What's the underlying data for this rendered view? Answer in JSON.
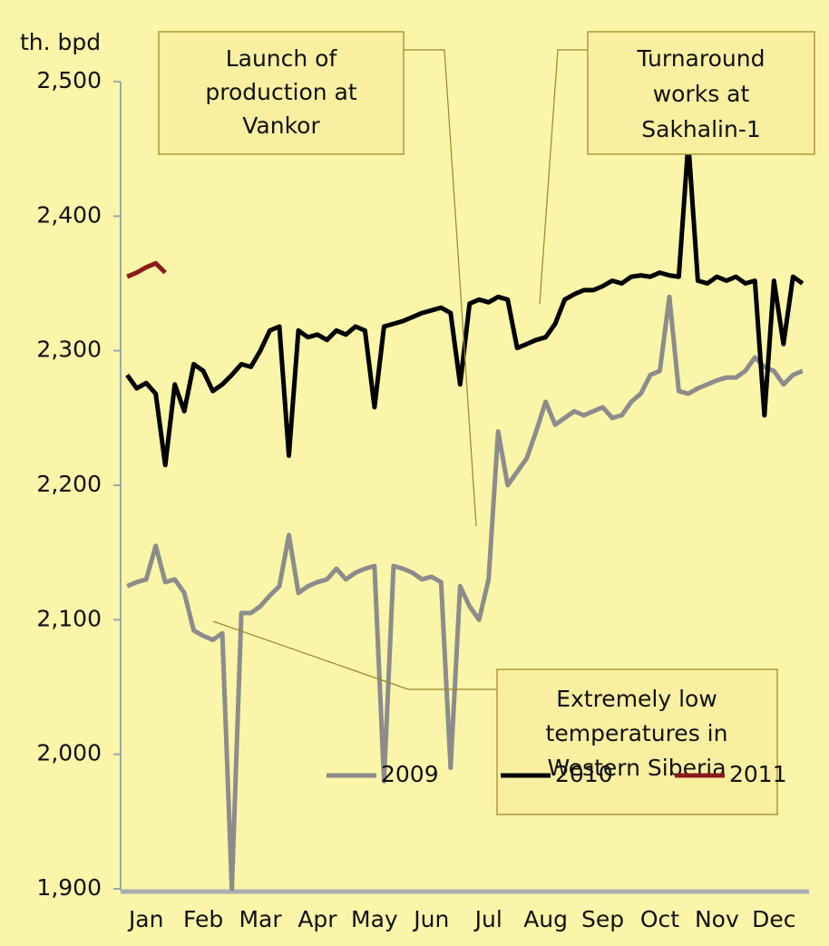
{
  "chart_data": {
    "type": "line",
    "y_axis_label": "th. bpd",
    "categories": [
      null,
      null,
      "Jan",
      null,
      null,
      null,
      null,
      null,
      "Feb",
      null,
      null,
      null,
      null,
      null,
      "Mar",
      null,
      null,
      null,
      null,
      null,
      "Apr",
      null,
      null,
      null,
      null,
      null,
      "May",
      null,
      null,
      null,
      null,
      null,
      "Jun",
      null,
      null,
      null,
      null,
      null,
      "Jul",
      null,
      null,
      null,
      null,
      null,
      "Aug",
      null,
      null,
      null,
      null,
      null,
      "Sep",
      null,
      null,
      null,
      null,
      null,
      "Oct",
      null,
      null,
      null,
      null,
      null,
      "Nov",
      null,
      null,
      null,
      null,
      null,
      "Dec",
      null,
      null,
      null
    ],
    "series": [
      {
        "name": "2009",
        "color": "#8c8c8c",
        "values": [
          2125,
          2128,
          2130,
          2155,
          2128,
          2130,
          2120,
          2092,
          2088,
          2085,
          2090,
          1900,
          2105,
          2105,
          2110,
          2118,
          2125,
          2163,
          2120,
          2125,
          2128,
          2130,
          2138,
          2130,
          2135,
          2138,
          2140,
          1980,
          2140,
          2138,
          2135,
          2130,
          2132,
          2128,
          1990,
          2125,
          2110,
          2100,
          2130,
          2240,
          2200,
          2210,
          2220,
          2240,
          2262,
          2245,
          2250,
          2255,
          2252,
          2255,
          2258,
          2250,
          2252,
          2262,
          2268,
          2282,
          2285,
          2340,
          2270,
          2268,
          2272,
          2275,
          2278,
          2280,
          2280,
          2285,
          2295,
          2288,
          2285,
          2275,
          2282,
          2285
        ]
      },
      {
        "name": "2010",
        "color": "#000000",
        "values": [
          2282,
          2272,
          2276,
          2268,
          2215,
          2275,
          2255,
          2290,
          2285,
          2270,
          2275,
          2282,
          2290,
          2288,
          2300,
          2315,
          2318,
          2222,
          2315,
          2310,
          2312,
          2308,
          2315,
          2312,
          2318,
          2315,
          2258,
          2318,
          2320,
          2322,
          2325,
          2328,
          2330,
          2332,
          2328,
          2275,
          2335,
          2338,
          2336,
          2340,
          2338,
          2302,
          2305,
          2308,
          2310,
          2320,
          2338,
          2342,
          2345,
          2345,
          2348,
          2352,
          2350,
          2355,
          2356,
          2355,
          2358,
          2356,
          2355,
          2455,
          2352,
          2350,
          2355,
          2352,
          2355,
          2350,
          2352,
          2252,
          2352,
          2305,
          2355,
          2350
        ]
      },
      {
        "name": "2011",
        "color": "#8b1a1a",
        "values": [
          2355,
          2358,
          2362,
          2365,
          2358,
          null,
          null,
          null,
          null,
          null,
          null,
          null,
          null,
          null,
          null,
          null,
          null,
          null,
          null,
          null,
          null,
          null,
          null,
          null,
          null,
          null,
          null,
          null,
          null,
          null,
          null,
          null,
          null,
          null,
          null,
          null,
          null,
          null,
          null,
          null,
          null,
          null,
          null,
          null,
          null,
          null,
          null,
          null,
          null,
          null,
          null,
          null,
          null,
          null,
          null,
          null,
          null,
          null,
          null,
          null,
          null,
          null,
          null,
          null,
          null,
          null,
          null,
          null,
          null,
          null,
          null,
          null
        ]
      }
    ],
    "ylim": [
      1900,
      2500
    ],
    "yticks": [
      {
        "value": 1900,
        "label": "1,900"
      },
      {
        "value": 2000,
        "label": "2,000"
      },
      {
        "value": 2100,
        "label": "2,100"
      },
      {
        "value": 2200,
        "label": "2,200"
      },
      {
        "value": 2300,
        "label": "2,300"
      },
      {
        "value": 2400,
        "label": "2,400"
      },
      {
        "value": 2500,
        "label": "2,500"
      }
    ],
    "legend": "bottom-right",
    "annotations": [
      [
        "Launch of",
        "production at",
        "Vankor"
      ],
      [
        "Turnaround",
        "works at",
        "Sakhalin-1"
      ],
      [
        "Extremely low",
        "temperatures in",
        "Western Siberia"
      ]
    ]
  }
}
